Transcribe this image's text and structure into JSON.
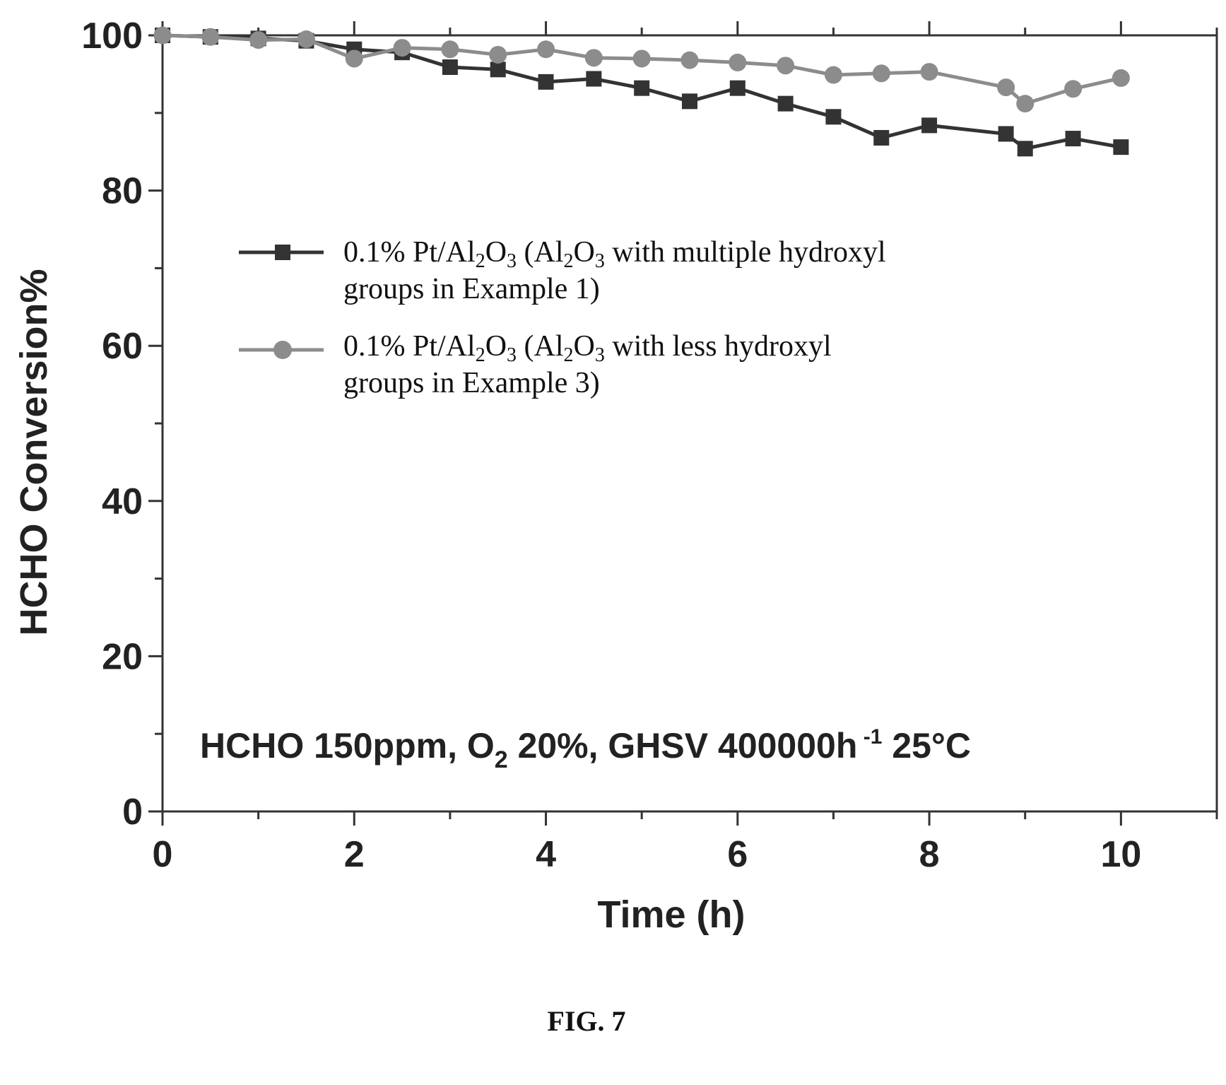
{
  "chart_data": {
    "type": "line",
    "xlabel": "Time (h)",
    "ylabel": "HCHO Conversion%",
    "xlim": [
      0,
      11
    ],
    "ylim": [
      0,
      100
    ],
    "x_ticks": [
      "0",
      "2",
      "4",
      "6",
      "8",
      "10"
    ],
    "y_ticks": [
      "0",
      "20",
      "40",
      "60",
      "80",
      "100"
    ],
    "grid": false,
    "legend_position": "upper-middle",
    "series": [
      {
        "name": "0.1% Pt/Al₂O₃ (Al₂O₃ with multiple hydroxyl groups in Example 1)",
        "marker": "square",
        "color": "#333333",
        "x": [
          0,
          0.5,
          1,
          1.5,
          2,
          2.5,
          3,
          3.5,
          4,
          4.5,
          5,
          5.5,
          6,
          6.5,
          7,
          7.5,
          8,
          8.8,
          9,
          9.5,
          10
        ],
        "y": [
          100,
          99.8,
          99.6,
          99.3,
          98.2,
          97.8,
          95.9,
          95.6,
          94,
          94.4,
          93.2,
          91.5,
          93.2,
          91.2,
          89.5,
          86.8,
          88.4,
          87.3,
          85.4,
          86.7,
          85.6
        ]
      },
      {
        "name": "0.1% Pt/Al₂O₃ (Al₂O₃ with less hydroxyl groups in Example 3)",
        "marker": "circle",
        "color": "#8c8c8c",
        "x": [
          0,
          0.5,
          1,
          1.5,
          2,
          2.5,
          3,
          3.5,
          4,
          4.5,
          5,
          5.5,
          6,
          6.5,
          7,
          7.5,
          8,
          8.8,
          9,
          9.5,
          10
        ],
        "y": [
          100,
          99.8,
          99.4,
          99.5,
          97,
          98.4,
          98.2,
          97.5,
          98.2,
          97.1,
          97,
          96.8,
          96.5,
          96.1,
          94.9,
          95.1,
          95.3,
          93.3,
          91.2,
          93.1,
          94.5
        ]
      }
    ],
    "annotation": "HCHO 150ppm,  O₂ 20%,  GHSV 400000h⁻¹ 25°C"
  },
  "figure_label": "FIG. 7"
}
